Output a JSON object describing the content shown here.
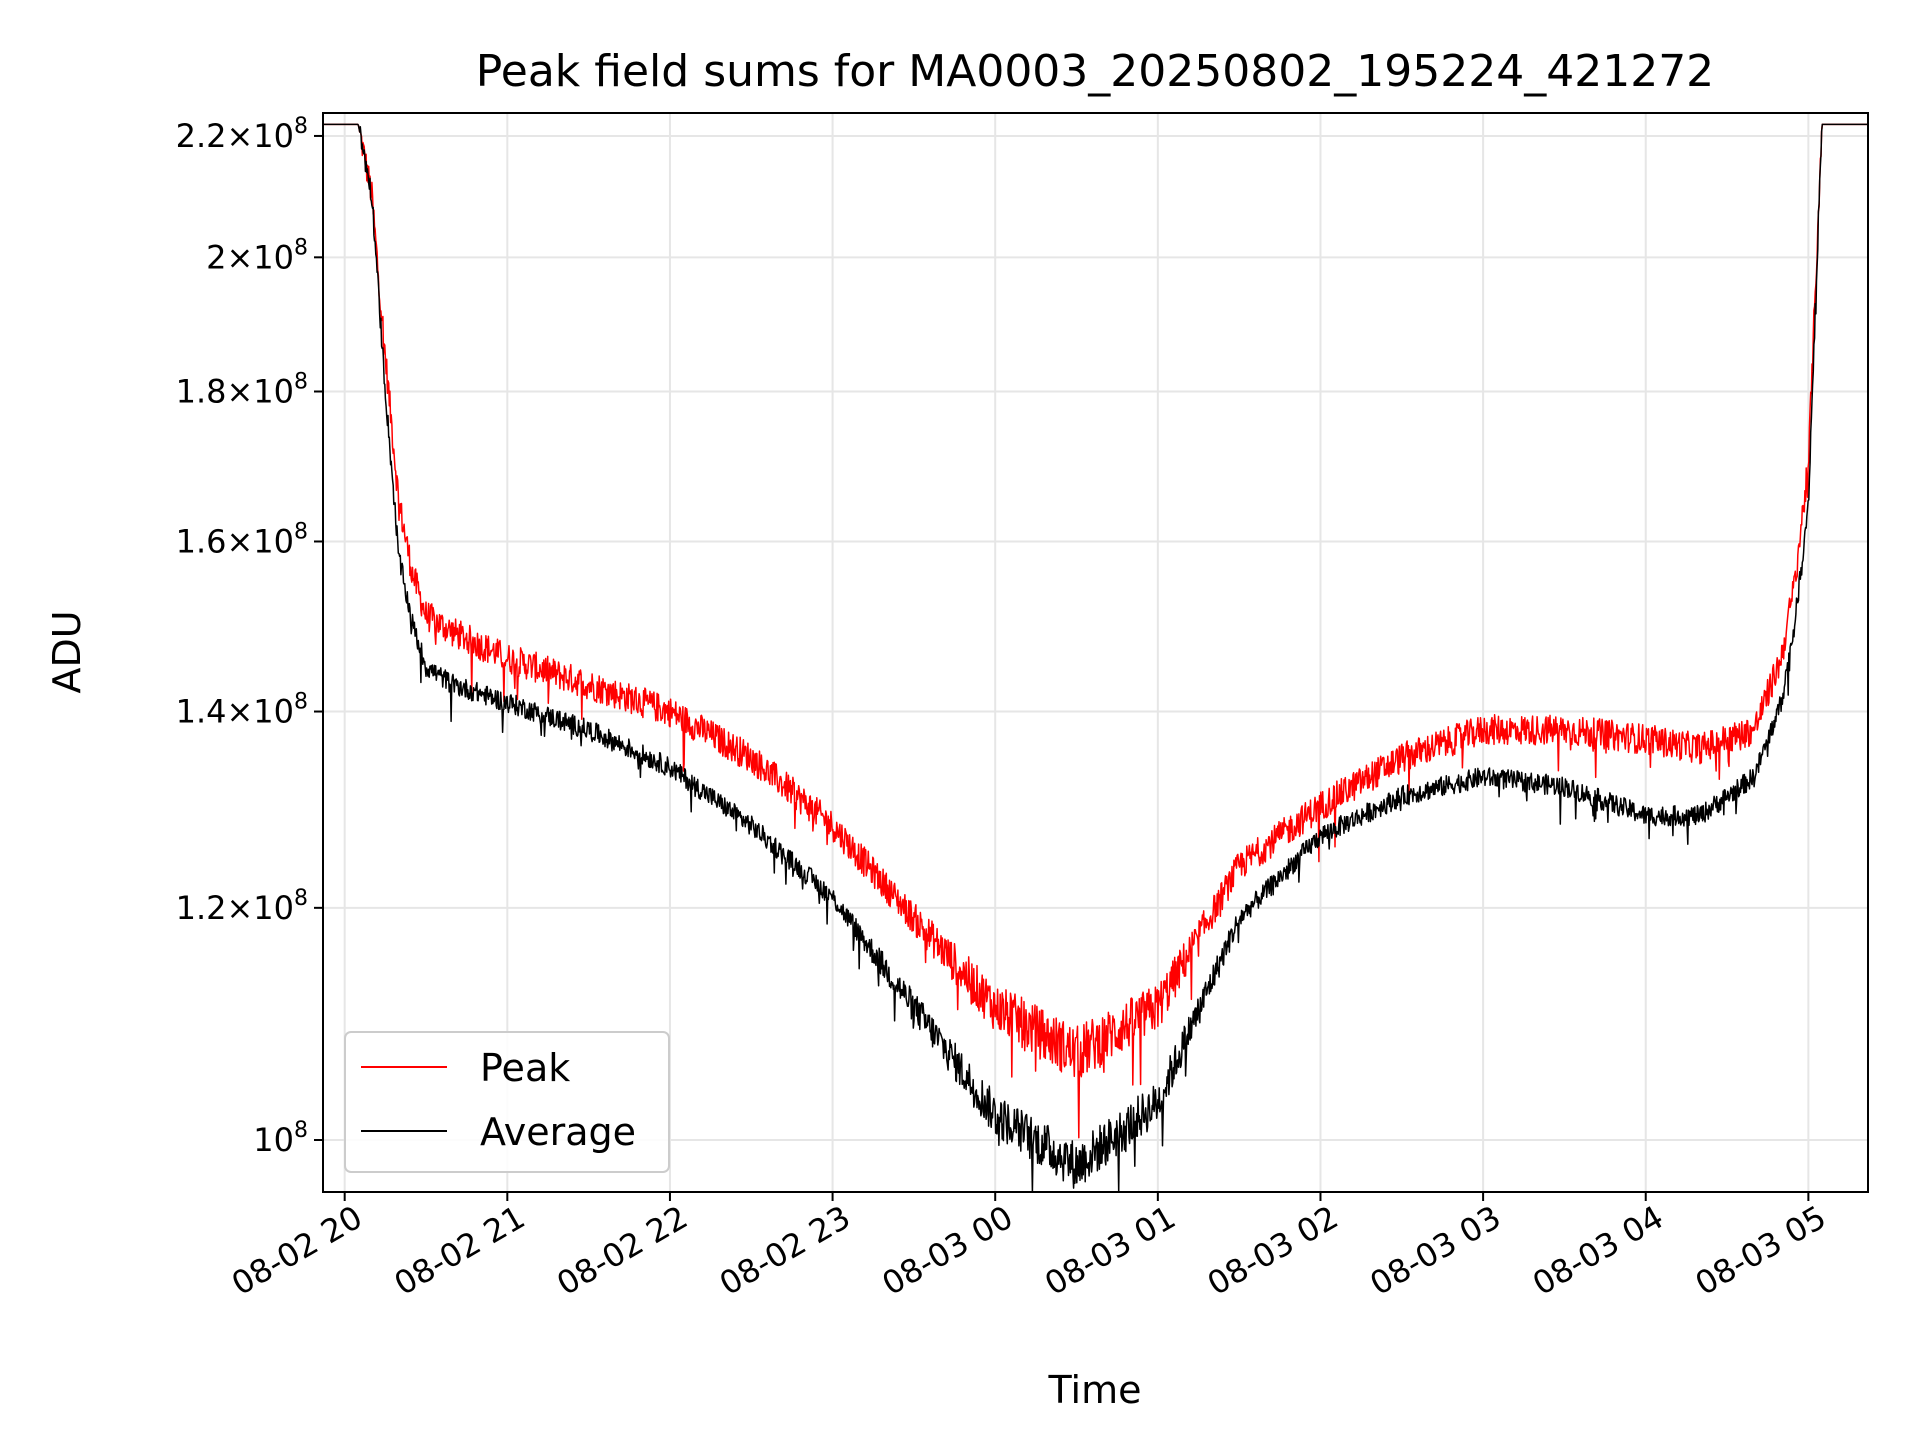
{
  "chart_data": {
    "type": "line",
    "title": "Peak field sums for MA0003_20250802_195224_421272",
    "xlabel": "Time",
    "ylabel": "ADU",
    "yscale": "log",
    "ylim": [
      96000000,
      224000000
    ],
    "xlim": [
      "2025-08-02 19:52",
      "2025-08-03 05:22"
    ],
    "grid": true,
    "legend_position": "lower-left",
    "x_ticks": [
      "08-02 20",
      "08-02 21",
      "08-02 22",
      "08-02 23",
      "08-03 00",
      "08-03 01",
      "08-03 02",
      "08-03 03",
      "08-03 04",
      "08-03 05"
    ],
    "y_ticks": [
      {
        "value": 100000000,
        "mantissa": "",
        "exponent": "8",
        "base": "10"
      },
      {
        "value": 120000000,
        "mantissa": "1.2",
        "exponent": "8",
        "base": "10"
      },
      {
        "value": 140000000,
        "mantissa": "1.4",
        "exponent": "8",
        "base": "10"
      },
      {
        "value": 160000000,
        "mantissa": "1.6",
        "exponent": "8",
        "base": "10"
      },
      {
        "value": 180000000,
        "mantissa": "1.8",
        "exponent": "8",
        "base": "10"
      },
      {
        "value": 200000000,
        "mantissa": "2",
        "exponent": "8",
        "base": "10"
      },
      {
        "value": 220000000,
        "mantissa": "2.2",
        "exponent": "8",
        "base": "10"
      }
    ],
    "series": [
      {
        "name": "Peak",
        "color": "#ff0000",
        "x": [
          "2025-08-02 19:52",
          "2025-08-02 20:05",
          "2025-08-02 20:10",
          "2025-08-02 20:15",
          "2025-08-02 20:20",
          "2025-08-02 20:25",
          "2025-08-02 20:30",
          "2025-08-02 20:40",
          "2025-08-02 21:00",
          "2025-08-02 21:30",
          "2025-08-02 22:00",
          "2025-08-02 22:30",
          "2025-08-02 23:00",
          "2025-08-02 23:30",
          "2025-08-03 00:00",
          "2025-08-03 00:30",
          "2025-08-03 01:00",
          "2025-08-03 01:30",
          "2025-08-03 02:00",
          "2025-08-03 02:30",
          "2025-08-03 03:00",
          "2025-08-03 03:30",
          "2025-08-03 04:00",
          "2025-08-03 04:20",
          "2025-08-03 04:40",
          "2025-08-03 04:50",
          "2025-08-03 04:55",
          "2025-08-03 05:00",
          "2025-08-03 05:05",
          "2025-08-03 05:22"
        ],
        "values": [
          222000000,
          222000000,
          210000000,
          185000000,
          165000000,
          156000000,
          151000000,
          149000000,
          146000000,
          143000000,
          140000000,
          135000000,
          128000000,
          119000000,
          111000000,
          107000000,
          111000000,
          124000000,
          130000000,
          135000000,
          138000000,
          138000000,
          137000000,
          136000000,
          138000000,
          146000000,
          155000000,
          170000000,
          222000000,
          222000000
        ],
        "noise": 0.012
      },
      {
        "name": "Average",
        "color": "#000000",
        "x": [
          "2025-08-02 19:52",
          "2025-08-02 20:05",
          "2025-08-02 20:10",
          "2025-08-02 20:15",
          "2025-08-02 20:20",
          "2025-08-02 20:25",
          "2025-08-02 20:30",
          "2025-08-02 20:40",
          "2025-08-02 21:00",
          "2025-08-02 21:30",
          "2025-08-02 22:00",
          "2025-08-02 22:30",
          "2025-08-02 23:00",
          "2025-08-02 23:30",
          "2025-08-03 00:00",
          "2025-08-03 00:30",
          "2025-08-03 01:00",
          "2025-08-03 01:30",
          "2025-08-03 02:00",
          "2025-08-03 02:30",
          "2025-08-03 03:00",
          "2025-08-03 03:30",
          "2025-08-03 04:00",
          "2025-08-03 04:20",
          "2025-08-03 04:40",
          "2025-08-03 04:50",
          "2025-08-03 04:55",
          "2025-08-03 05:00",
          "2025-08-03 05:05",
          "2025-08-03 05:22"
        ],
        "values": [
          222000000,
          222000000,
          210000000,
          180000000,
          158000000,
          150000000,
          145000000,
          143000000,
          141000000,
          138000000,
          134000000,
          128000000,
          121000000,
          111000000,
          102000000,
          98000000,
          103000000,
          119000000,
          127000000,
          131000000,
          133000000,
          132000000,
          129000000,
          129000000,
          133000000,
          141000000,
          150000000,
          165000000,
          222000000,
          222000000
        ],
        "noise": 0.008
      }
    ]
  }
}
